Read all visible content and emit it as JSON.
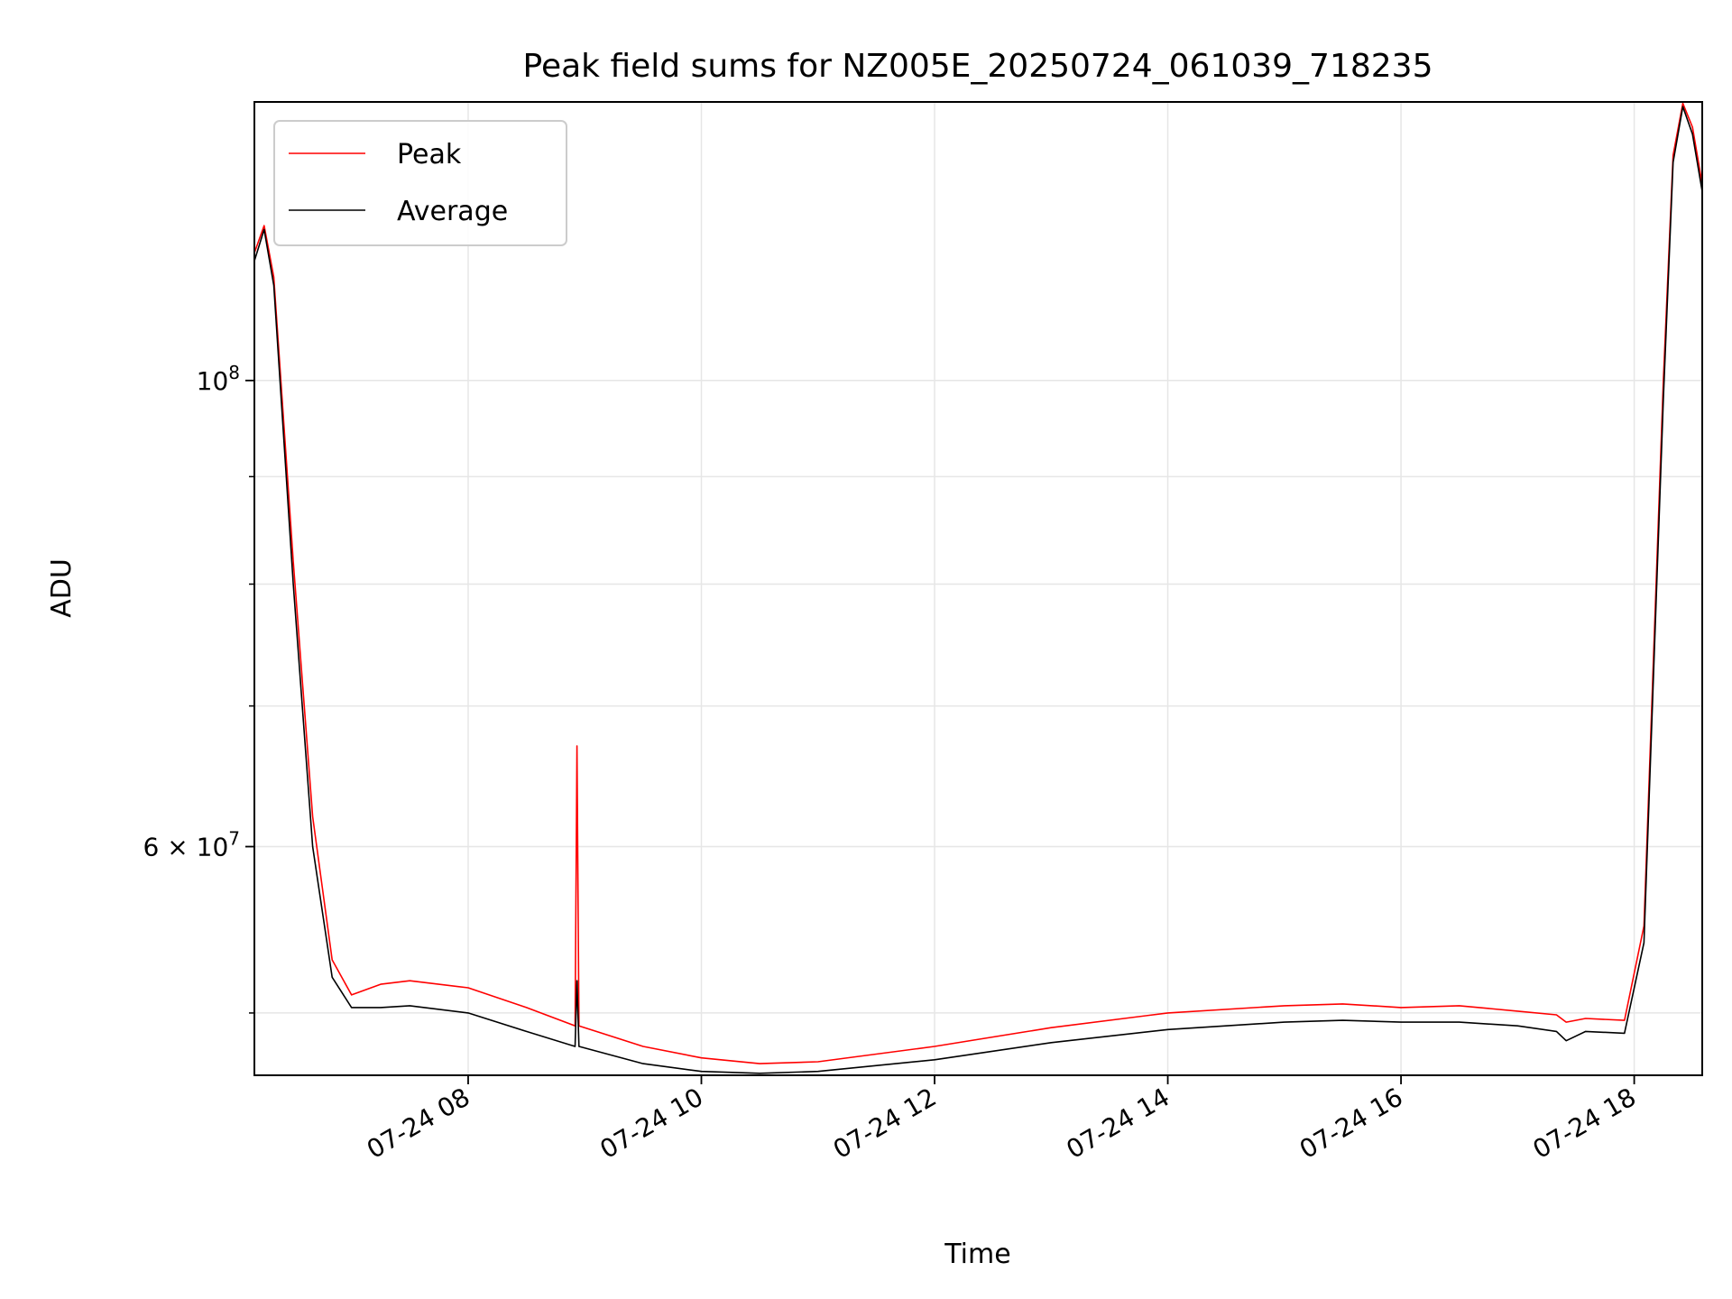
{
  "chart_data": {
    "type": "line",
    "title": "Peak field sums for NZ005E_20250724_061039_718235",
    "xlabel": "Time",
    "ylabel": "ADU",
    "y_scale": "log",
    "grid": true,
    "legend_position": "top-left",
    "xlim": [
      "2025-07-24 06:10",
      "2025-07-24 18:35"
    ],
    "ylim": [
      46700000,
      135700000
    ],
    "x_ticks": [
      {
        "value": "2025-07-24 08:00",
        "label": "07-24 08"
      },
      {
        "value": "2025-07-24 10:00",
        "label": "07-24 10"
      },
      {
        "value": "2025-07-24 12:00",
        "label": "07-24 12"
      },
      {
        "value": "2025-07-24 14:00",
        "label": "07-24 14"
      },
      {
        "value": "2025-07-24 16:00",
        "label": "07-24 16"
      },
      {
        "value": "2025-07-24 18:00",
        "label": "07-24 18"
      }
    ],
    "y_major_ticks": [
      {
        "value": 100000000,
        "label_base": "10",
        "label_exp": "8",
        "label_prefix": ""
      },
      {
        "value": 60000000,
        "label_base": "10",
        "label_exp": "7",
        "label_prefix": "6 × "
      }
    ],
    "y_minor_ticks": [
      50000000,
      70000000,
      80000000,
      90000000
    ],
    "series": [
      {
        "name": "Peak",
        "color": "#ff0000",
        "x": [
          "2025-07-24 06:10",
          "2025-07-24 06:15",
          "2025-07-24 06:20",
          "2025-07-24 06:30",
          "2025-07-24 06:40",
          "2025-07-24 06:50",
          "2025-07-24 07:00",
          "2025-07-24 07:15",
          "2025-07-24 07:30",
          "2025-07-24 08:00",
          "2025-07-24 08:30",
          "2025-07-24 08:55",
          "2025-07-24 08:56",
          "2025-07-24 08:57",
          "2025-07-24 09:30",
          "2025-07-24 10:00",
          "2025-07-24 10:30",
          "2025-07-24 11:00",
          "2025-07-24 12:00",
          "2025-07-24 13:00",
          "2025-07-24 14:00",
          "2025-07-24 15:00",
          "2025-07-24 15:30",
          "2025-07-24 16:00",
          "2025-07-24 16:30",
          "2025-07-24 17:00",
          "2025-07-24 17:20",
          "2025-07-24 17:25",
          "2025-07-24 17:35",
          "2025-07-24 17:55",
          "2025-07-24 18:05",
          "2025-07-24 18:15",
          "2025-07-24 18:20",
          "2025-07-24 18:25",
          "2025-07-24 18:30",
          "2025-07-24 18:35"
        ],
        "y": [
          115000000,
          118500000,
          112000000,
          82000000,
          62000000,
          53000000,
          51000000,
          51600000,
          51800000,
          51400000,
          50300000,
          49300000,
          67000000,
          49300000,
          48200000,
          47600000,
          47300000,
          47400000,
          48200000,
          49200000,
          50000000,
          50400000,
          50500000,
          50300000,
          50400000,
          50100000,
          49900000,
          49500000,
          49700000,
          49600000,
          55000000,
          100000000,
          128000000,
          135500000,
          132000000,
          124000000
        ]
      },
      {
        "name": "Average",
        "color": "#000000",
        "x": [
          "2025-07-24 06:10",
          "2025-07-24 06:15",
          "2025-07-24 06:20",
          "2025-07-24 06:30",
          "2025-07-24 06:40",
          "2025-07-24 06:50",
          "2025-07-24 07:00",
          "2025-07-24 07:15",
          "2025-07-24 07:30",
          "2025-07-24 08:00",
          "2025-07-24 08:30",
          "2025-07-24 08:55",
          "2025-07-24 08:56",
          "2025-07-24 08:57",
          "2025-07-24 09:30",
          "2025-07-24 10:00",
          "2025-07-24 10:30",
          "2025-07-24 11:00",
          "2025-07-24 12:00",
          "2025-07-24 13:00",
          "2025-07-24 14:00",
          "2025-07-24 15:00",
          "2025-07-24 15:30",
          "2025-07-24 16:00",
          "2025-07-24 16:30",
          "2025-07-24 17:00",
          "2025-07-24 17:20",
          "2025-07-24 17:25",
          "2025-07-24 17:35",
          "2025-07-24 17:55",
          "2025-07-24 18:05",
          "2025-07-24 18:15",
          "2025-07-24 18:20",
          "2025-07-24 18:25",
          "2025-07-24 18:30",
          "2025-07-24 18:35"
        ],
        "y": [
          114000000,
          118000000,
          111000000,
          80000000,
          60000000,
          52000000,
          50300000,
          50300000,
          50400000,
          50000000,
          49000000,
          48200000,
          51800000,
          48200000,
          47300000,
          46900000,
          46800000,
          46900000,
          47500000,
          48400000,
          49100000,
          49500000,
          49600000,
          49500000,
          49500000,
          49300000,
          49000000,
          48500000,
          49000000,
          48900000,
          54000000,
          98000000,
          127000000,
          135000000,
          131000000,
          123000000
        ]
      }
    ]
  }
}
